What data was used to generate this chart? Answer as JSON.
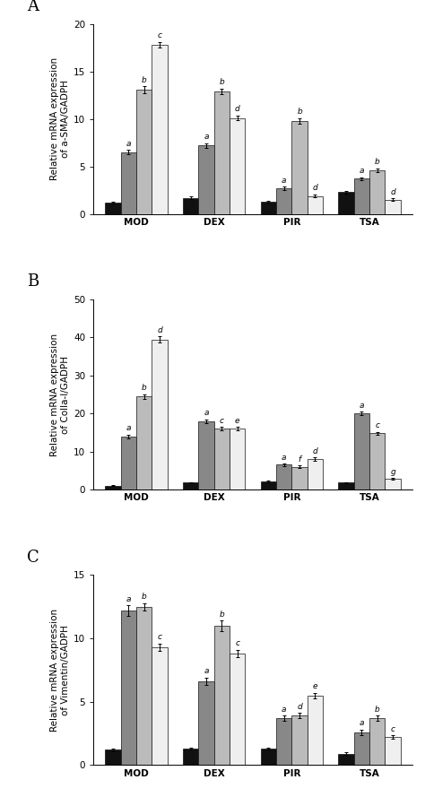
{
  "panels": [
    {
      "label": "A",
      "ylabel": "Relative mRNA expression\nof a-SMA/GADPH",
      "ylim": [
        0,
        20
      ],
      "yticks": [
        0,
        5,
        10,
        15,
        20
      ],
      "groups": [
        "MOD",
        "DEX",
        "PIR",
        "TSA"
      ],
      "bars": {
        "black": [
          1.2,
          1.7,
          1.3,
          2.3
        ],
        "gray": [
          6.5,
          7.2,
          2.7,
          3.7
        ],
        "dgray": [
          13.1,
          12.9,
          9.8,
          4.6
        ],
        "white": [
          17.8,
          10.1,
          1.9,
          1.5
        ]
      },
      "errors": {
        "black": [
          0.1,
          0.15,
          0.1,
          0.12
        ],
        "gray": [
          0.25,
          0.25,
          0.18,
          0.18
        ],
        "dgray": [
          0.35,
          0.3,
          0.3,
          0.2
        ],
        "white": [
          0.3,
          0.25,
          0.15,
          0.15
        ]
      },
      "letters": {
        "black": [
          "",
          "",
          "",
          ""
        ],
        "gray": [
          "a",
          "a",
          "a",
          "a"
        ],
        "dgray": [
          "b",
          "b",
          "b",
          "b"
        ],
        "white": [
          "c",
          "d",
          "d",
          "d"
        ]
      }
    },
    {
      "label": "B",
      "ylabel": "Relative mRNA expression\nof Colla-I/GADPH",
      "ylim": [
        0,
        50
      ],
      "yticks": [
        0,
        10,
        20,
        30,
        40,
        50
      ],
      "groups": [
        "MOD",
        "DEX",
        "PIR",
        "TSA"
      ],
      "bars": {
        "black": [
          1.0,
          1.8,
          2.2,
          1.8
        ],
        "gray": [
          14.0,
          18.0,
          6.5,
          20.0
        ],
        "dgray": [
          24.5,
          16.0,
          6.0,
          14.8
        ],
        "white": [
          39.5,
          16.0,
          8.0,
          2.8
        ]
      },
      "errors": {
        "black": [
          0.1,
          0.2,
          0.2,
          0.15
        ],
        "gray": [
          0.5,
          0.5,
          0.3,
          0.5
        ],
        "dgray": [
          0.6,
          0.5,
          0.3,
          0.4
        ],
        "white": [
          0.8,
          0.5,
          0.4,
          0.2
        ]
      },
      "letters": {
        "black": [
          "",
          "",
          "",
          ""
        ],
        "gray": [
          "a",
          "a",
          "a",
          "a"
        ],
        "dgray": [
          "b",
          "c",
          "f",
          "c"
        ],
        "white": [
          "d",
          "e",
          "d",
          "g"
        ]
      }
    },
    {
      "label": "C",
      "ylabel": "Relative mRNA expression\nof Vimentin/GADPH",
      "ylim": [
        0,
        15
      ],
      "yticks": [
        0,
        5,
        10,
        15
      ],
      "groups": [
        "MOD",
        "DEX",
        "PIR",
        "TSA"
      ],
      "bars": {
        "black": [
          1.2,
          1.3,
          1.3,
          0.9
        ],
        "gray": [
          12.2,
          6.6,
          3.7,
          2.6
        ],
        "dgray": [
          12.5,
          11.0,
          3.9,
          3.7
        ],
        "white": [
          9.3,
          8.8,
          5.5,
          2.2
        ]
      },
      "errors": {
        "black": [
          0.1,
          0.1,
          0.1,
          0.1
        ],
        "gray": [
          0.4,
          0.3,
          0.2,
          0.2
        ],
        "dgray": [
          0.3,
          0.4,
          0.2,
          0.2
        ],
        "white": [
          0.3,
          0.3,
          0.2,
          0.15
        ]
      },
      "letters": {
        "black": [
          "",
          "",
          "",
          ""
        ],
        "gray": [
          "a",
          "a",
          "a",
          "a"
        ],
        "dgray": [
          "b",
          "b",
          "d",
          "b"
        ],
        "white": [
          "c",
          "c",
          "e",
          "c"
        ]
      }
    }
  ],
  "bar_colors": [
    "#111111",
    "#888888",
    "#bbbbbb",
    "#efefef"
  ],
  "bar_edgecolor": "#111111",
  "bar_width": 0.2,
  "letter_fontsize": 6.5,
  "axis_fontsize": 7.5,
  "tick_fontsize": 7.5,
  "label_fontsize": 13,
  "background_color": "#ffffff"
}
